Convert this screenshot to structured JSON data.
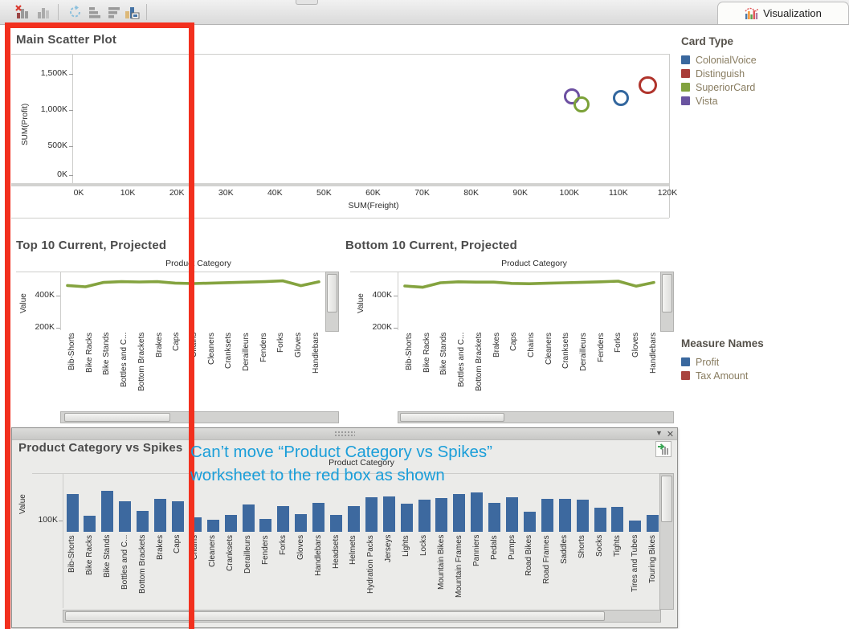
{
  "toolbar": {
    "tab_label": "Visualization",
    "icons": [
      "chart-error",
      "chart",
      "refresh",
      "sort-ascending",
      "sort-descending",
      "highlight-labels"
    ]
  },
  "annotation": {
    "line1": "Can’t move “Product Category vs Spikes”",
    "line2": "worksheet to the red box as shown",
    "color": "#1a9ed9"
  },
  "red_box_color": "#f2301e",
  "legends": {
    "card_type": {
      "title": "Card Type",
      "items": [
        {
          "label": "ColonialVoice",
          "color": "#3a689e"
        },
        {
          "label": "Distinguish",
          "color": "#a93c38"
        },
        {
          "label": "SuperiorCard",
          "color": "#82a23e"
        },
        {
          "label": "Vista",
          "color": "#6a54a0"
        }
      ]
    },
    "measure_names": {
      "title": "Measure Names",
      "items": [
        {
          "label": "Profit",
          "color": "#3a689e"
        },
        {
          "label": "Tax Amount",
          "color": "#a9443f"
        }
      ]
    }
  },
  "panel": {
    "controls": [
      "collapse",
      "close"
    ],
    "go_to_worksheet_icon": "go-to-worksheet"
  },
  "chart_data": [
    {
      "type": "scatter",
      "title": "Main Scatter Plot",
      "xlabel": "SUM(Freight)",
      "ylabel": "SUM(Profit)",
      "x_ticks": [
        "0K",
        "10K",
        "20K",
        "30K",
        "40K",
        "50K",
        "60K",
        "70K",
        "80K",
        "90K",
        "100K",
        "110K",
        "120K"
      ],
      "y_ticks": [
        "0K",
        "500K",
        "1,000K",
        "1,500K"
      ],
      "xlim_k": [
        0,
        120
      ],
      "ylim_k": [
        0,
        1500
      ],
      "grid": false,
      "legend": "Card Type (right)",
      "series": [
        {
          "name": "Vista",
          "color": "#6c4fa1",
          "x_k": 100,
          "y_k": 1200,
          "size": 1.0
        },
        {
          "name": "SuperiorCard",
          "color": "#7ba138",
          "x_k": 102,
          "y_k": 1085,
          "size": 1.0
        },
        {
          "name": "ColonialVoice",
          "color": "#33679e",
          "x_k": 110,
          "y_k": 1180,
          "size": 1.0
        },
        {
          "name": "Distinguish",
          "color": "#b0342c",
          "x_k": 115.5,
          "y_k": 1370,
          "size": 1.15
        }
      ]
    },
    {
      "type": "line",
      "title": "Top 10 Current, Projected",
      "axis_title": "Product Category",
      "ylabel": "Value",
      "y_ticks": [
        "200K",
        "400K"
      ],
      "line_color": "#84a33f",
      "categories": [
        "Bib-Shorts",
        "Bike Racks",
        "Bike Stands",
        "Bottles and C...",
        "Bottom Brackets",
        "Brakes",
        "Caps",
        "Chains",
        "Cleaners",
        "Cranksets",
        "Derailleurs",
        "Fenders",
        "Forks",
        "Gloves",
        "Handlebars"
      ],
      "values_k": [
        463,
        455,
        482,
        487,
        485,
        487,
        478,
        475,
        478,
        481,
        484,
        487,
        492,
        462,
        486
      ]
    },
    {
      "type": "line",
      "title": "Bottom 10 Current, Projected",
      "axis_title": "Product Category",
      "ylabel": "Value",
      "y_ticks": [
        "200K",
        "400K"
      ],
      "line_color": "#84a33f",
      "categories": [
        "Bib-Shorts",
        "Bike Racks",
        "Bike Stands",
        "Bottles and C...",
        "Bottom Brackets",
        "Brakes",
        "Caps",
        "Chains",
        "Cleaners",
        "Cranksets",
        "Derailleurs",
        "Fenders",
        "Forks",
        "Gloves",
        "Handlebars"
      ],
      "values_k": [
        460,
        452,
        480,
        486,
        484,
        484,
        476,
        474,
        477,
        480,
        483,
        486,
        490,
        459,
        482
      ]
    },
    {
      "type": "bar",
      "title": "Product Category vs Spikes",
      "axis_title": "Product Category",
      "ylabel": "Value",
      "y_ticks": [
        "100K"
      ],
      "bar_color": "#3d699f",
      "categories": [
        "Bib-Shorts",
        "Bike Racks",
        "Bike Stands",
        "Bottles and C...",
        "Bottom Brackets",
        "Brakes",
        "Caps",
        "Chains",
        "Cleaners",
        "Cranksets",
        "Derailleurs",
        "Fenders",
        "Forks",
        "Gloves",
        "Handlebars",
        "Headsets",
        "Helmets",
        "Hydration Packs",
        "Jerseys",
        "Lights",
        "Locks",
        "Mountain Bikes",
        "Mountain Frames",
        "Panniers",
        "Pedals",
        "Pumps",
        "Road Bikes",
        "Road Frames",
        "Saddles",
        "Shorts",
        "Socks",
        "Tights",
        "Tires and Tubes",
        "Touring Bikes"
      ],
      "values_k": [
        335,
        143,
        364,
        271,
        186,
        293,
        271,
        129,
        107,
        150,
        243,
        114,
        229,
        157,
        257,
        150,
        229,
        307,
        314,
        250,
        286,
        300,
        336,
        350,
        257,
        307,
        179,
        293,
        293,
        286,
        214,
        221,
        100,
        150
      ]
    }
  ]
}
